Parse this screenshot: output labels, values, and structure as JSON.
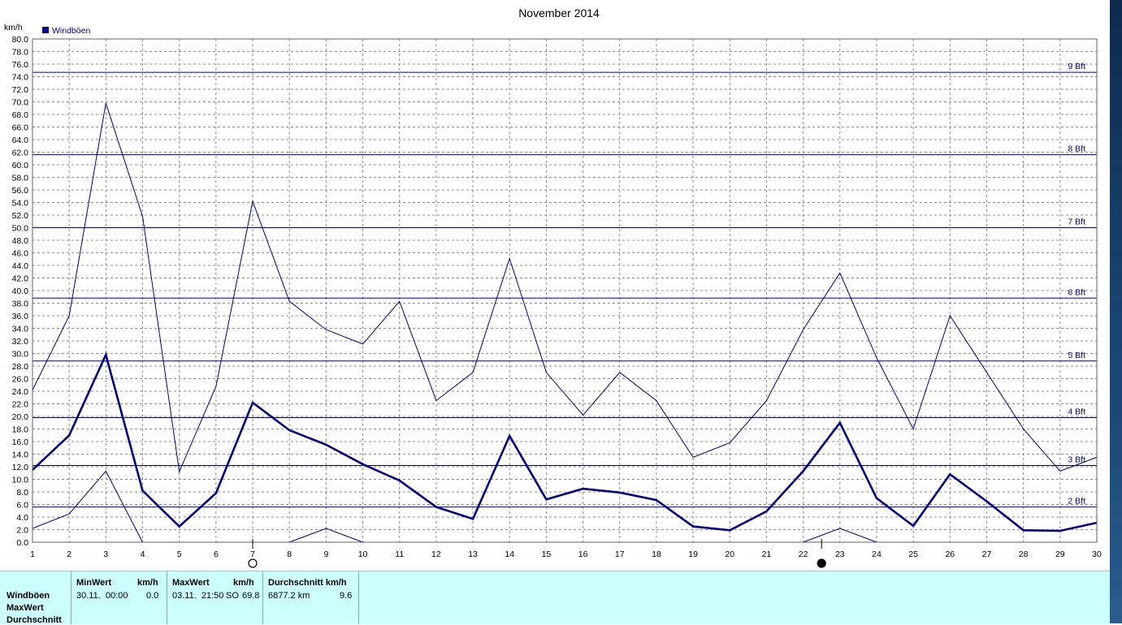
{
  "chart_data": {
    "type": "line",
    "title": "November 2014",
    "ylabel": "km/h",
    "xlabel": "",
    "ylim": [
      0,
      80
    ],
    "xlim": [
      1,
      30
    ],
    "grid": true,
    "legend": {
      "placement": "top-left",
      "entries": [
        "Windböen"
      ]
    },
    "x": [
      1,
      2,
      3,
      4,
      5,
      6,
      7,
      8,
      9,
      10,
      11,
      12,
      13,
      14,
      15,
      16,
      17,
      18,
      19,
      20,
      21,
      22,
      23,
      24,
      25,
      26,
      27,
      28,
      29,
      30
    ],
    "x_tick_labels": [
      "1",
      "2",
      "3",
      "4",
      "5",
      "6",
      "7",
      "8",
      "9",
      "10",
      "11",
      "12",
      "13",
      "14",
      "15",
      "16",
      "17",
      "18",
      "19",
      "20",
      "21",
      "22",
      "23",
      "24",
      "25",
      "26",
      "27",
      "28",
      "29",
      "30"
    ],
    "y_tick_labels": [
      "0.0",
      "2.0",
      "4.0",
      "6.0",
      "8.0",
      "10.0",
      "12.0",
      "14.0",
      "16.0",
      "18.0",
      "20.0",
      "22.0",
      "24.0",
      "26.0",
      "28.0",
      "30.0",
      "32.0",
      "34.0",
      "36.0",
      "38.0",
      "40.0",
      "42.0",
      "44.0",
      "46.0",
      "48.0",
      "50.0",
      "52.0",
      "54.0",
      "56.0",
      "58.0",
      "60.0",
      "62.0",
      "64.0",
      "66.0",
      "68.0",
      "70.0",
      "72.0",
      "74.0",
      "76.0",
      "78.0",
      "80.0"
    ],
    "series": [
      {
        "name": "Windböen",
        "color": "#000080",
        "stroke": "bold",
        "values": [
          11.5,
          17.0,
          29.8,
          8.2,
          2.5,
          7.8,
          22.2,
          17.8,
          15.5,
          12.4,
          9.8,
          5.6,
          3.7,
          16.9,
          6.8,
          8.5,
          7.9,
          6.7,
          2.5,
          1.9,
          4.9,
          11.3,
          19.0,
          7.0,
          2.6,
          10.8,
          6.5,
          1.9,
          1.8,
          3.1
        ]
      },
      {
        "color": "#000080",
        "stroke": "thin",
        "values": [
          24.2,
          36.0,
          69.8,
          51.8,
          11.2,
          24.8,
          54.2,
          38.3,
          33.8,
          31.5,
          38.3,
          22.5,
          27.0,
          45.1,
          27.0,
          20.2,
          27.0,
          22.5,
          13.5,
          15.8,
          22.5,
          33.8,
          42.8,
          29.3,
          18.0,
          36.0,
          27.0,
          18.0,
          11.3,
          13.5
        ]
      },
      {
        "color": "#000080",
        "stroke": "thin",
        "values": [
          2.2,
          4.5,
          11.3,
          0.0,
          null,
          null,
          null,
          0.0,
          2.2,
          0.0,
          null,
          null,
          null,
          null,
          null,
          null,
          null,
          null,
          null,
          null,
          null,
          0.0,
          2.2,
          0.0,
          null,
          null,
          null,
          null,
          null,
          null
        ]
      }
    ],
    "beaufort_lines": [
      {
        "label": "2 Bft",
        "value": 5.6
      },
      {
        "label": "3 Bft",
        "value": 12.2
      },
      {
        "label": "4 Bft",
        "value": 19.8
      },
      {
        "label": "5 Bft",
        "value": 28.8
      },
      {
        "label": "6 Bft",
        "value": 38.8
      },
      {
        "label": "7 Bft",
        "value": 50.0
      },
      {
        "label": "8 Bft",
        "value": 61.6
      },
      {
        "label": "9 Bft",
        "value": 74.7
      }
    ],
    "moon_phases": [
      {
        "x": 7,
        "phase": "full"
      },
      {
        "x": 22.5,
        "phase": "new"
      }
    ]
  },
  "stats": {
    "row_labels": [
      "Windböen",
      "MaxWert",
      "Durchschnitt"
    ],
    "min": {
      "header": "MinWert",
      "unit": "km/h",
      "date": "30.11.",
      "time": "00:00",
      "value": "0.0"
    },
    "max": {
      "header": "MaxWert",
      "unit": "km/h",
      "datetime": "03.11.  21:50",
      "dir": "SO",
      "value": "69.8"
    },
    "avg": {
      "header": "Durchschnitt km/h",
      "distance": "6877.2 km",
      "value": "9.6"
    }
  }
}
